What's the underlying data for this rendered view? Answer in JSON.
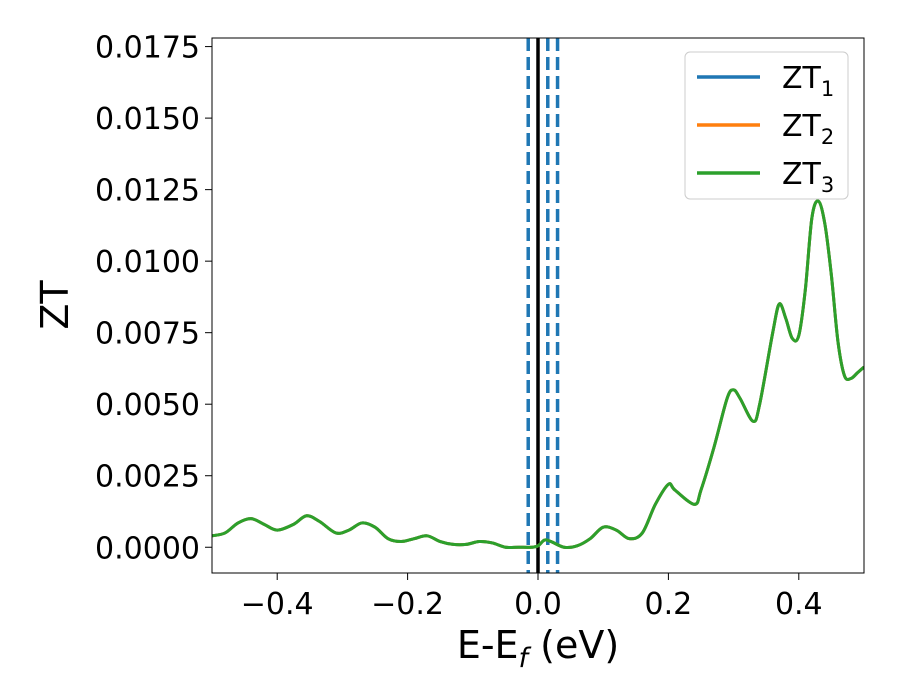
{
  "chart_data": {
    "type": "line",
    "xlabel": {
      "main": "E-E",
      "sub": "f",
      "unit": " (eV)"
    },
    "ylabel": "ZT",
    "xlim": [
      -0.5,
      0.5
    ],
    "ylim": [
      -0.0009,
      0.0178
    ],
    "xticks": [
      {
        "value": -0.4,
        "label": "−0.4"
      },
      {
        "value": -0.2,
        "label": "−0.2"
      },
      {
        "value": 0.0,
        "label": "0.0"
      },
      {
        "value": 0.2,
        "label": "0.2"
      },
      {
        "value": 0.4,
        "label": "0.4"
      }
    ],
    "yticks": [
      {
        "value": 0.0,
        "label": "0.0000"
      },
      {
        "value": 0.0025,
        "label": "0.0025"
      },
      {
        "value": 0.005,
        "label": "0.0050"
      },
      {
        "value": 0.0075,
        "label": "0.0075"
      },
      {
        "value": 0.01,
        "label": "0.0100"
      },
      {
        "value": 0.0125,
        "label": "0.0125"
      },
      {
        "value": 0.015,
        "label": "0.0150"
      },
      {
        "value": 0.0175,
        "label": "0.0175"
      }
    ],
    "grid": false,
    "legend_position": "top-right",
    "vlines": [
      {
        "x": 0.0,
        "style": "solid",
        "color": "#000000"
      },
      {
        "x": -0.015,
        "style": "dashed",
        "color": "#1f77b4"
      },
      {
        "x": 0.015,
        "style": "dashed",
        "color": "#1f77b4"
      },
      {
        "x": 0.03,
        "style": "dashed",
        "color": "#1f77b4"
      }
    ],
    "x": [
      -0.5,
      -0.48,
      -0.46,
      -0.44,
      -0.42,
      -0.4,
      -0.375,
      -0.355,
      -0.335,
      -0.31,
      -0.29,
      -0.27,
      -0.25,
      -0.23,
      -0.21,
      -0.19,
      -0.17,
      -0.15,
      -0.13,
      -0.11,
      -0.09,
      -0.07,
      -0.05,
      -0.03,
      -0.01,
      0.0,
      0.01,
      0.02,
      0.04,
      0.06,
      0.08,
      0.1,
      0.12,
      0.14,
      0.16,
      0.18,
      0.2,
      0.21,
      0.24,
      0.25,
      0.27,
      0.29,
      0.3,
      0.31,
      0.33,
      0.34,
      0.36,
      0.37,
      0.38,
      0.39,
      0.4,
      0.41,
      0.42,
      0.43,
      0.44,
      0.45,
      0.46,
      0.47,
      0.48,
      0.49,
      0.5
    ],
    "series": [
      {
        "name": "ZT",
        "sub": "1",
        "color": "#1f77b4",
        "values": [
          0.0004,
          0.0005,
          0.00085,
          0.001,
          0.0008,
          0.0006,
          0.0008,
          0.0011,
          0.0009,
          0.0005,
          0.0006,
          0.00085,
          0.0007,
          0.0003,
          0.0002,
          0.0003,
          0.0004,
          0.0002,
          0.0001,
          0.0001,
          0.0002,
          0.00015,
          0.0,
          0.0,
          0.0,
          5e-05,
          0.00025,
          0.0002,
          0.0,
          5e-05,
          0.0003,
          0.0007,
          0.0006,
          0.0003,
          0.0005,
          0.0015,
          0.0022,
          0.002,
          0.0015,
          0.002,
          0.0035,
          0.0052,
          0.0055,
          0.0052,
          0.0044,
          0.005,
          0.0075,
          0.0085,
          0.008,
          0.0073,
          0.0074,
          0.009,
          0.0115,
          0.0121,
          0.0113,
          0.0095,
          0.0072,
          0.006,
          0.0059,
          0.0061,
          0.0063
        ]
      },
      {
        "name": "ZT",
        "sub": "2",
        "color": "#ff7f0e",
        "values": [
          0.0004,
          0.0005,
          0.00085,
          0.001,
          0.0008,
          0.0006,
          0.0008,
          0.0011,
          0.0009,
          0.0005,
          0.0006,
          0.00085,
          0.0007,
          0.0003,
          0.0002,
          0.0003,
          0.0004,
          0.0002,
          0.0001,
          0.0001,
          0.0002,
          0.00015,
          0.0,
          0.0,
          0.0,
          5e-05,
          0.00025,
          0.0002,
          0.0,
          5e-05,
          0.0003,
          0.0007,
          0.0006,
          0.0003,
          0.0005,
          0.0015,
          0.0022,
          0.002,
          0.0015,
          0.002,
          0.0035,
          0.0052,
          0.0055,
          0.0052,
          0.0044,
          0.005,
          0.0075,
          0.0085,
          0.008,
          0.0073,
          0.0074,
          0.009,
          0.0115,
          0.0121,
          0.0113,
          0.0095,
          0.0072,
          0.006,
          0.0059,
          0.0061,
          0.0063
        ]
      },
      {
        "name": "ZT",
        "sub": "3",
        "color": "#2ca02c",
        "values": [
          0.0004,
          0.0005,
          0.00085,
          0.001,
          0.0008,
          0.0006,
          0.0008,
          0.0011,
          0.0009,
          0.0005,
          0.0006,
          0.00085,
          0.0007,
          0.0003,
          0.0002,
          0.0003,
          0.0004,
          0.0002,
          0.0001,
          0.0001,
          0.0002,
          0.00015,
          0.0,
          0.0,
          0.0,
          5e-05,
          0.00025,
          0.0002,
          0.0,
          5e-05,
          0.0003,
          0.0007,
          0.0006,
          0.0003,
          0.0005,
          0.0015,
          0.0022,
          0.002,
          0.0015,
          0.002,
          0.0035,
          0.0052,
          0.0055,
          0.0052,
          0.0044,
          0.005,
          0.0075,
          0.0085,
          0.008,
          0.0073,
          0.0074,
          0.009,
          0.0115,
          0.0121,
          0.0113,
          0.0095,
          0.0072,
          0.006,
          0.0059,
          0.0061,
          0.0063
        ]
      }
    ]
  }
}
